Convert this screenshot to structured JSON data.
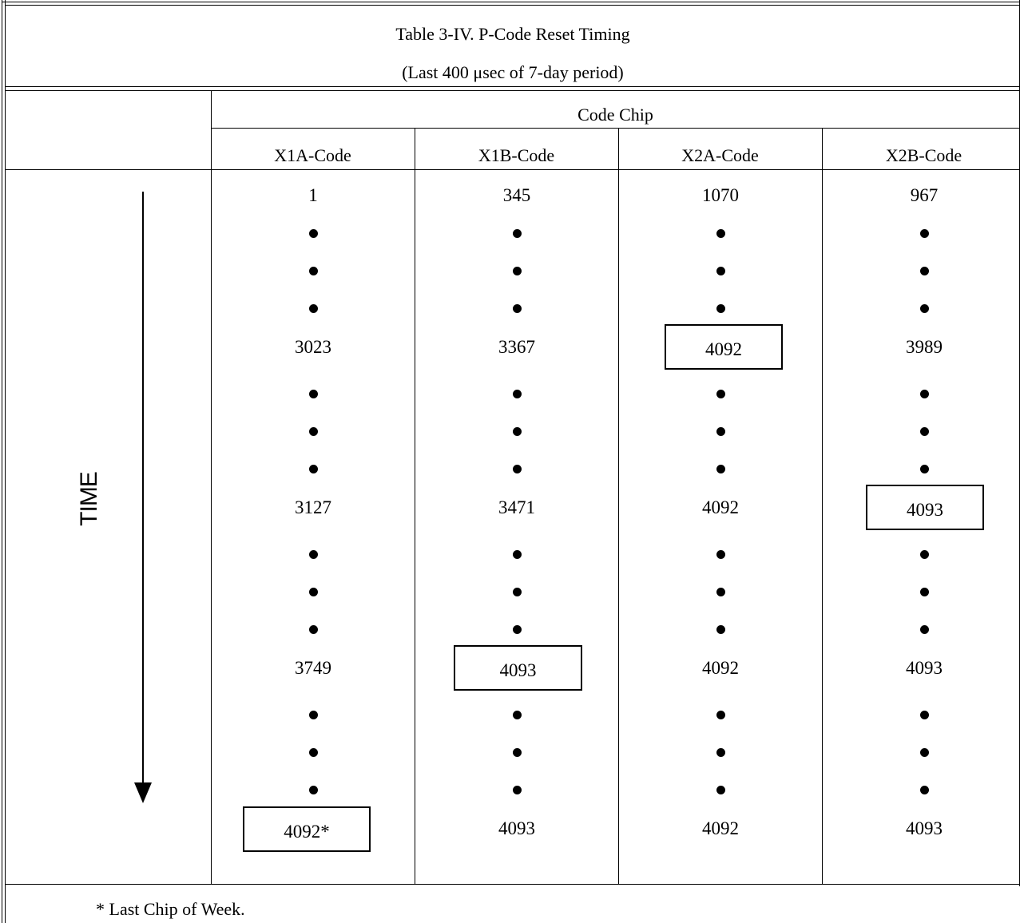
{
  "table": {
    "title": "Table 3-IV.  P-Code Reset Timing",
    "subtitle": "(Last 400 μsec of 7-day period)",
    "group_header": "Code Chip",
    "axis_label": "TIME",
    "columns": [
      "X1A-Code",
      "X1B-Code",
      "X2A-Code",
      "X2B-Code"
    ],
    "rows": [
      [
        "1",
        "345",
        "1070",
        "967"
      ],
      [
        "3023",
        "3367",
        "4092",
        "3989"
      ],
      [
        "3127",
        "3471",
        "4092",
        "4093"
      ],
      [
        "3749",
        "4093",
        "4092",
        "4093"
      ],
      [
        "4092*",
        "4093",
        "4092",
        "4093"
      ]
    ],
    "footnote": "* Last Chip of Week."
  }
}
